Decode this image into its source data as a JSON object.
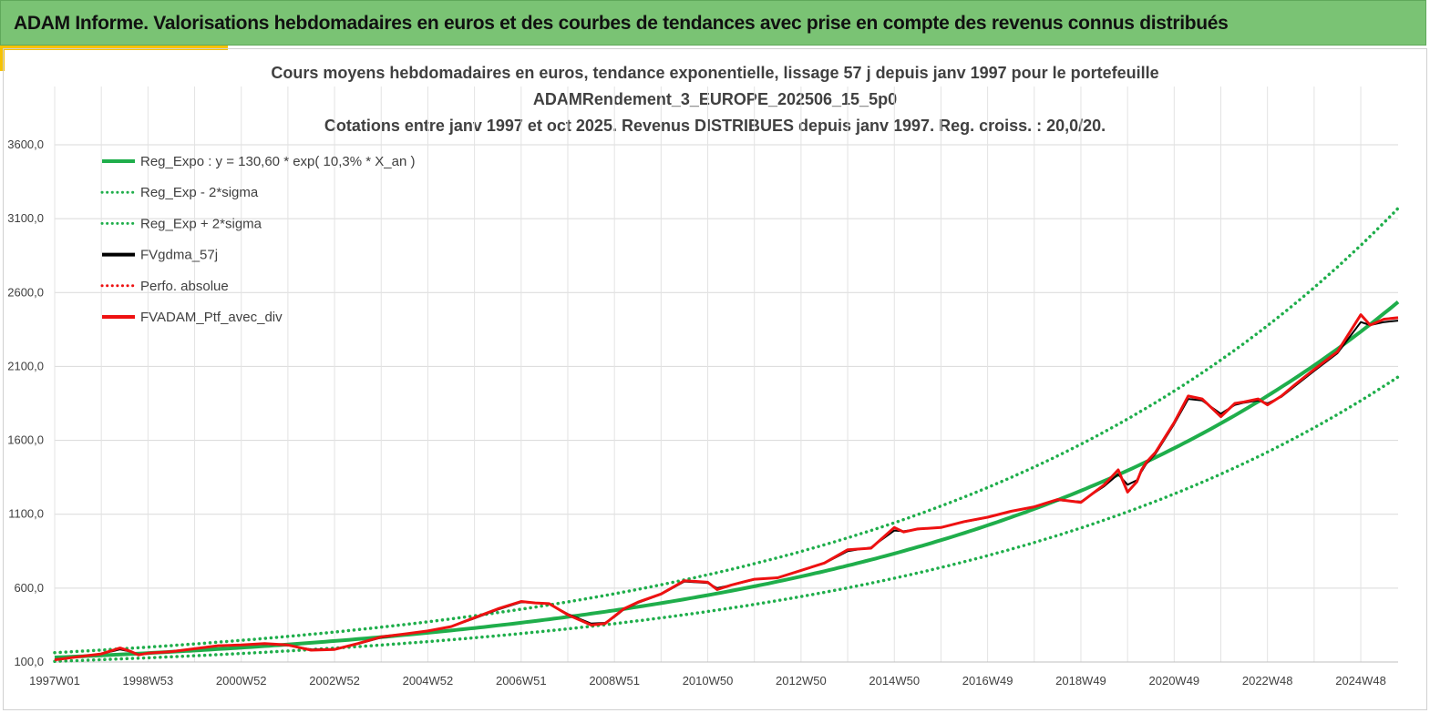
{
  "banner": {
    "title": "ADAM Informe. Valorisations hebdomadaires en euros et des courbes de tendances avec prise en compte des revenus connus distribués"
  },
  "colors": {
    "banner_bg": "#7ac374",
    "accent": "#f6c200",
    "reg_expo": "#1fae4b",
    "fvgdma": "#000000",
    "portfolio": "#ee1111"
  },
  "chart_data": {
    "type": "line",
    "title": [
      "Cours moyens hebdomadaires  en euros, tendance exponentielle, lissage 57 j depuis janv 1997 pour le portefeuille",
      "ADAMRendement_3_EUROPE_202506_15_5p0",
      "Cotations  entre janv 1997 et oct 2025. Revenus DISTRIBUES depuis janv 1997. Reg. croiss. : 20,0/20."
    ],
    "xlabel": "",
    "ylabel": "",
    "ylim": [
      100,
      3600
    ],
    "xlim": [
      1997.0,
      2025.8
    ],
    "yticks": [
      "100,0",
      "600,0",
      "1100,0",
      "1600,0",
      "2100,0",
      "2600,0",
      "3100,0",
      "3600,0"
    ],
    "ytick_values": [
      100,
      600,
      1100,
      1600,
      2100,
      2600,
      3100,
      3600
    ],
    "xticks": [
      "1997W01",
      "1998W53",
      "2000W52",
      "2002W52",
      "2004W52",
      "2006W51",
      "2008W51",
      "2010W50",
      "2012W50",
      "2014W50",
      "2016W49",
      "2018W49",
      "2020W49",
      "2022W48",
      "2024W48"
    ],
    "xtick_values": [
      1997.0,
      1999.0,
      2001.0,
      2003.0,
      2005.0,
      2007.0,
      2009.0,
      2011.0,
      2013.0,
      2015.0,
      2017.0,
      2019.0,
      2021.0,
      2023.0,
      2025.0
    ],
    "grid": true,
    "legend_position": "top-left",
    "legend": [
      {
        "label": "Reg_Expo : y = 130,60 * exp( 10,3% *  X_an )",
        "style": "solid-thick",
        "color": "#1fae4b"
      },
      {
        "label": "Reg_Exp - 2*sigma",
        "style": "dotted",
        "color": "#1fae4b"
      },
      {
        "label": "Reg_Exp + 2*sigma",
        "style": "dotted",
        "color": "#1fae4b"
      },
      {
        "label": "FVgdma_57j",
        "style": "solid-thick",
        "color": "#000000"
      },
      {
        "label": "Perfo. absolue",
        "style": "dotted",
        "color": "#ee1111"
      },
      {
        "label": "FVADAM_Ptf_avec_div",
        "style": "solid-thick",
        "color": "#ee1111"
      }
    ],
    "regression": {
      "a": 130.6,
      "rate": 0.103,
      "lower_factor": 0.8,
      "upper_factor": 1.25
    },
    "series": [
      {
        "name": "FVADAM_Ptf_avec_div",
        "x": [
          1997.0,
          1997.5,
          1998.0,
          1998.4,
          1998.6,
          1998.8,
          1999.0,
          1999.5,
          2000.0,
          2000.5,
          2001.0,
          2001.5,
          2002.0,
          2002.5,
          2003.0,
          2003.5,
          2004.0,
          2004.5,
          2005.0,
          2005.5,
          2006.0,
          2006.5,
          2007.0,
          2007.3,
          2007.6,
          2008.0,
          2008.5,
          2008.8,
          2009.0,
          2009.2,
          2009.5,
          2010.0,
          2010.5,
          2011.0,
          2011.2,
          2011.5,
          2011.8,
          2012.0,
          2012.5,
          2013.0,
          2013.5,
          2014.0,
          2014.5,
          2015.0,
          2015.2,
          2015.5,
          2016.0,
          2016.5,
          2017.0,
          2017.5,
          2018.0,
          2018.5,
          2019.0,
          2019.5,
          2019.8,
          2020.0,
          2020.2,
          2020.3,
          2020.4,
          2020.6,
          2021.0,
          2021.3,
          2021.6,
          2022.0,
          2022.3,
          2022.5,
          2022.8,
          2023.0,
          2023.3,
          2023.6,
          2024.0,
          2024.5,
          2025.0,
          2025.2,
          2025.5,
          2025.8
        ],
        "y": [
          115,
          135,
          155,
          195,
          175,
          148,
          160,
          170,
          190,
          210,
          215,
          225,
          215,
          180,
          185,
          225,
          270,
          290,
          310,
          340,
          400,
          460,
          510,
          500,
          495,
          420,
          350,
          360,
          410,
          460,
          505,
          560,
          650,
          640,
          590,
          620,
          645,
          660,
          670,
          720,
          770,
          860,
          870,
          1010,
          980,
          1000,
          1010,
          1050,
          1080,
          1120,
          1150,
          1200,
          1180,
          1300,
          1400,
          1250,
          1320,
          1400,
          1450,
          1520,
          1720,
          1900,
          1880,
          1760,
          1850,
          1860,
          1880,
          1840,
          1900,
          1980,
          2080,
          2200,
          2450,
          2380,
          2420,
          2430
        ]
      },
      {
        "name": "FVgdma_57j",
        "x": [
          1997.0,
          1997.5,
          1998.0,
          1998.4,
          1998.6,
          1998.8,
          1999.0,
          1999.5,
          2000.0,
          2000.5,
          2001.0,
          2001.5,
          2002.0,
          2002.5,
          2003.0,
          2003.5,
          2004.0,
          2004.5,
          2005.0,
          2005.5,
          2006.0,
          2006.5,
          2007.0,
          2007.3,
          2007.6,
          2008.0,
          2008.5,
          2008.8,
          2009.0,
          2009.2,
          2009.5,
          2010.0,
          2010.5,
          2011.0,
          2011.2,
          2011.5,
          2011.8,
          2012.0,
          2012.5,
          2013.0,
          2013.5,
          2014.0,
          2014.5,
          2015.0,
          2015.2,
          2015.5,
          2016.0,
          2016.5,
          2017.0,
          2017.5,
          2018.0,
          2018.5,
          2019.0,
          2019.5,
          2019.8,
          2020.0,
          2020.2,
          2020.3,
          2020.4,
          2020.6,
          2021.0,
          2021.3,
          2021.6,
          2022.0,
          2022.3,
          2022.5,
          2022.8,
          2023.0,
          2023.3,
          2023.6,
          2024.0,
          2024.5,
          2025.0,
          2025.2,
          2025.5,
          2025.8
        ],
        "y": [
          118,
          136,
          156,
          185,
          172,
          152,
          160,
          172,
          190,
          208,
          215,
          222,
          212,
          185,
          188,
          222,
          265,
          290,
          310,
          340,
          395,
          455,
          505,
          500,
          492,
          425,
          360,
          365,
          405,
          455,
          500,
          558,
          645,
          635,
          600,
          620,
          642,
          658,
          672,
          718,
          768,
          850,
          875,
          990,
          985,
          998,
          1012,
          1048,
          1078,
          1118,
          1150,
          1195,
          1185,
          1290,
          1370,
          1300,
          1330,
          1390,
          1440,
          1510,
          1710,
          1880,
          1870,
          1780,
          1840,
          1855,
          1870,
          1850,
          1895,
          1970,
          2070,
          2190,
          2400,
          2380,
          2400,
          2410
        ]
      }
    ]
  }
}
